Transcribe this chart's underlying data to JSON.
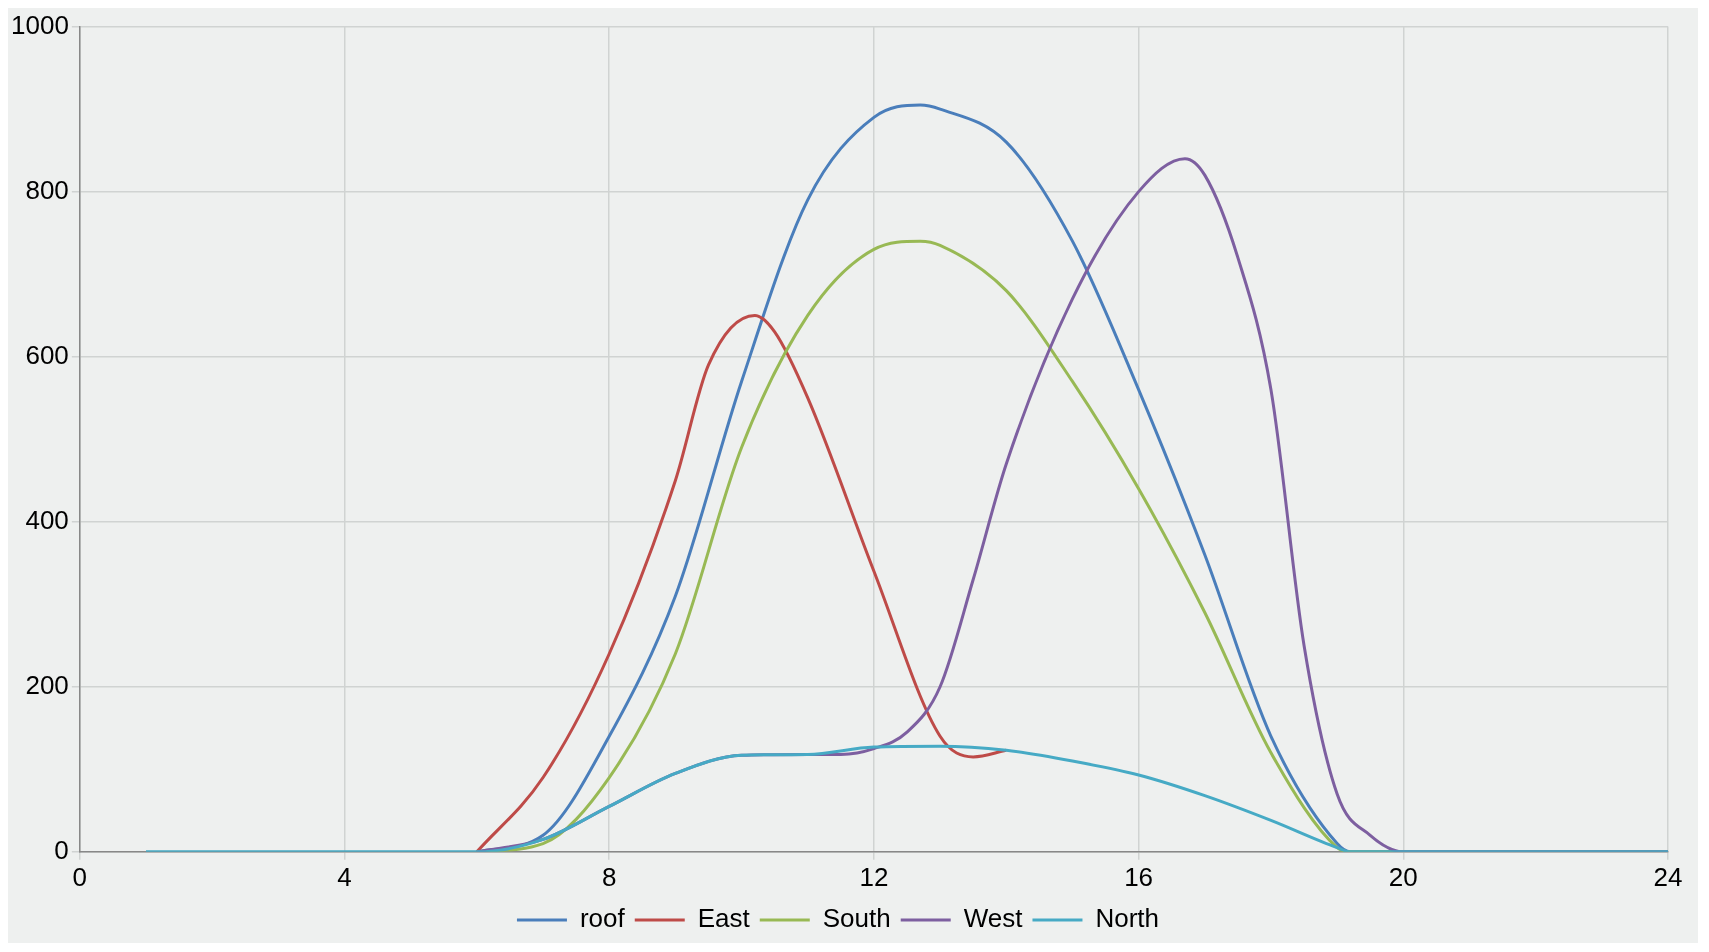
{
  "chart_data": {
    "type": "line",
    "xlim": [
      0,
      24
    ],
    "xticks": [
      0,
      4,
      8,
      12,
      16,
      20,
      24
    ],
    "ylim": [
      0,
      1000
    ],
    "yticks": [
      0,
      200,
      400,
      600,
      800,
      1000
    ],
    "grid": true,
    "legend": "bottom",
    "marker": "none",
    "line_style": "solid",
    "series": [
      {
        "name": "roof",
        "color": "#4a7ebb",
        "x": [
          6,
          7,
          8,
          9,
          10,
          11,
          12,
          12.7,
          13,
          14,
          15,
          16,
          17,
          18,
          19,
          19.2,
          20,
          24
        ],
        "values": [
          0,
          20,
          140,
          310,
          570,
          790,
          890,
          905,
          900,
          860,
          740,
          560,
          360,
          140,
          10,
          0,
          0,
          0
        ]
      },
      {
        "name": "East",
        "color": "#be4b48",
        "x": [
          6,
          7,
          8,
          9,
          9.5,
          10.2,
          10.5,
          11,
          12,
          13,
          13.5,
          14
        ],
        "values": [
          0,
          90,
          240,
          450,
          590,
          650,
          630,
          550,
          340,
          140,
          115,
          123
        ]
      },
      {
        "name": "South",
        "color": "#98b954",
        "x": [
          6,
          7,
          8,
          9,
          10,
          11,
          12,
          12.7,
          13,
          14,
          15,
          16,
          17,
          18,
          19,
          19.2,
          20,
          24
        ],
        "values": [
          0,
          10,
          90,
          240,
          490,
          650,
          730,
          740,
          735,
          680,
          570,
          440,
          290,
          120,
          5,
          0,
          0,
          0
        ]
      },
      {
        "name": "West",
        "color": "#7d5fa0",
        "x": [
          6,
          7,
          8,
          9,
          10,
          11,
          11.5,
          12,
          12.5,
          13,
          13.5,
          14,
          15,
          16,
          16.7,
          17,
          17.5,
          18,
          18.5,
          19,
          19.5,
          20,
          24
        ],
        "values": [
          0,
          15,
          55,
          95,
          117,
          118,
          118,
          125,
          145,
          200,
          330,
          470,
          670,
          800,
          840,
          820,
          720,
          560,
          250,
          70,
          20,
          0,
          0
        ]
      },
      {
        "name": "North",
        "color": "#46aac5",
        "x": [
          1,
          5,
          6,
          7,
          8,
          9,
          10,
          11,
          12,
          13,
          14,
          15,
          16,
          17,
          18,
          19,
          19.2,
          20,
          24
        ],
        "values": [
          0,
          0,
          0,
          15,
          55,
          95,
          117,
          118,
          127,
          128,
          123,
          110,
          93,
          68,
          38,
          5,
          0,
          0,
          0
        ]
      }
    ]
  }
}
